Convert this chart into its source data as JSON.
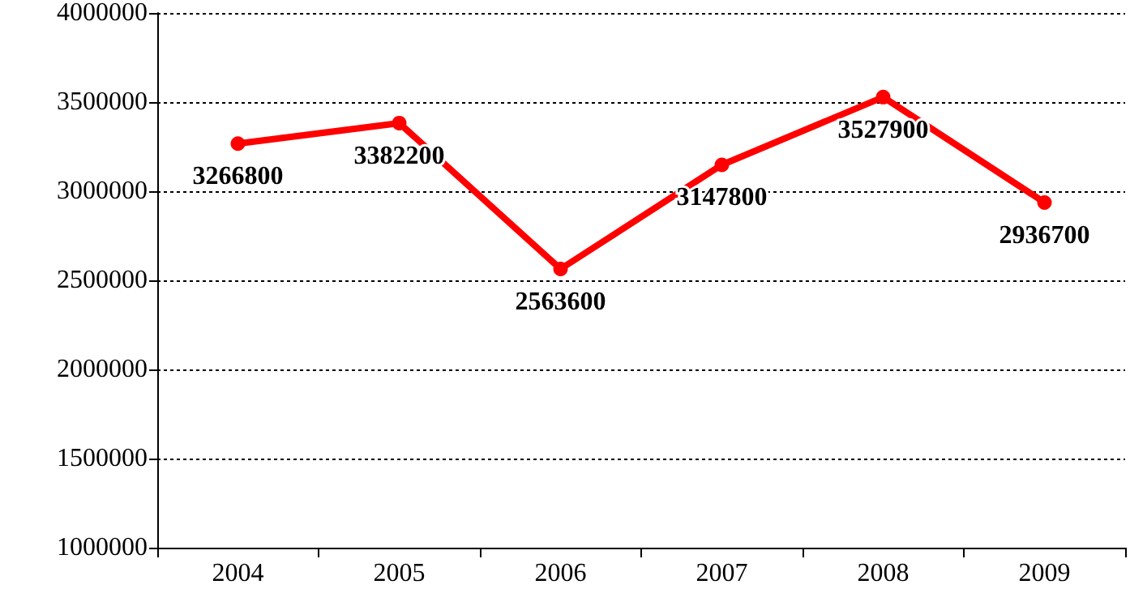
{
  "chart_data": {
    "type": "line",
    "categories": [
      "2004",
      "2005",
      "2006",
      "2007",
      "2008",
      "2009"
    ],
    "series": [
      {
        "color": "#ff0000",
        "values": [
          3266800,
          3382200,
          2563600,
          3147800,
          3527900,
          2936700
        ]
      }
    ],
    "ylim": [
      1000000,
      4000000
    ],
    "yticks": [
      1000000,
      1500000,
      2000000,
      2500000,
      3000000,
      3500000,
      4000000
    ],
    "grid": "y",
    "marker": "circle",
    "line_style": "solid",
    "data_labels": true
  }
}
